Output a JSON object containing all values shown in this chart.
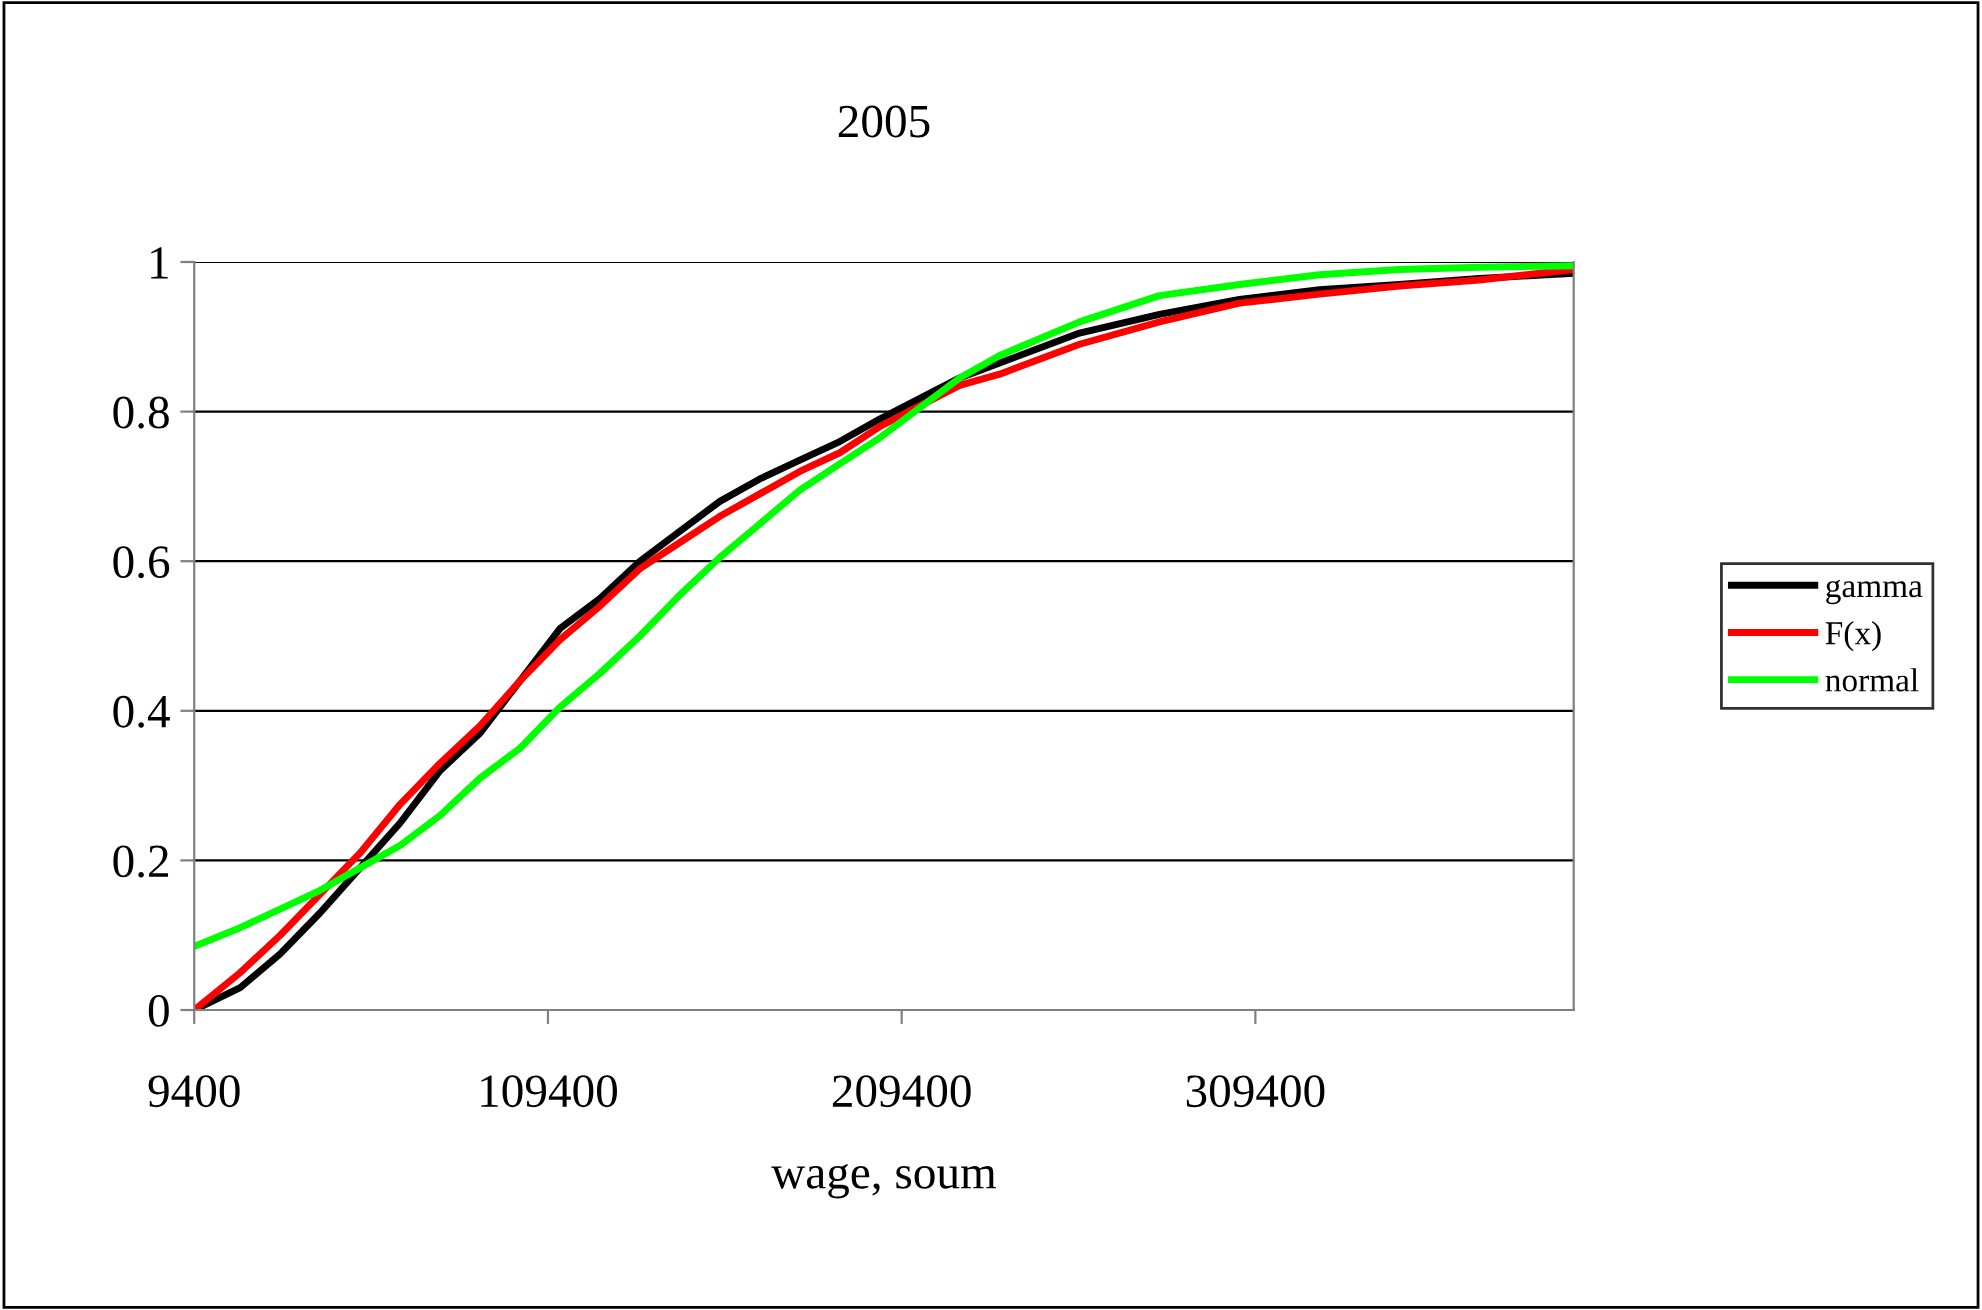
{
  "chart_data": {
    "type": "line",
    "title": "2005",
    "xlabel": "wage, soum",
    "x": [
      9400,
      22400,
      33700,
      45000,
      56300,
      67600,
      78900,
      90200,
      101500,
      112800,
      124100,
      135400,
      146700,
      158000,
      169300,
      180600,
      191900,
      203200,
      225800,
      237100,
      259700,
      282300,
      304900,
      327500,
      350100,
      372700,
      399400
    ],
    "series": [
      {
        "name": "gamma",
        "color": "#000000",
        "values": [
          0,
          0.03,
          0.075,
          0.13,
          0.19,
          0.25,
          0.32,
          0.37,
          0.44,
          0.51,
          0.55,
          0.6,
          0.64,
          0.68,
          0.71,
          0.735,
          0.76,
          0.79,
          0.845,
          0.865,
          0.905,
          0.93,
          0.95,
          0.963,
          0.97,
          0.978,
          0.985
        ]
      },
      {
        "name": "F(x)",
        "color": "#ff0000",
        "values": [
          0,
          0.05,
          0.1,
          0.155,
          0.21,
          0.275,
          0.33,
          0.38,
          0.44,
          0.495,
          0.54,
          0.59,
          0.625,
          0.66,
          0.69,
          0.72,
          0.745,
          0.78,
          0.835,
          0.85,
          0.89,
          0.92,
          0.945,
          0.957,
          0.968,
          0.976,
          0.99
        ]
      },
      {
        "name": "normal",
        "color": "#00ff00",
        "values": [
          0.085,
          0.11,
          0.135,
          0.16,
          0.19,
          0.22,
          0.26,
          0.31,
          0.35,
          0.405,
          0.45,
          0.5,
          0.555,
          0.605,
          0.65,
          0.695,
          0.73,
          0.765,
          0.845,
          0.875,
          0.92,
          0.955,
          0.97,
          0.983,
          0.99,
          0.993,
          0.995
        ]
      }
    ],
    "xlim": [
      9400,
      399400
    ],
    "xticks": [
      9400,
      109400,
      209400,
      309400
    ],
    "ylim": [
      0,
      1
    ],
    "yticks": [
      0,
      0.2,
      0.4,
      0.6,
      0.8,
      1
    ],
    "grid": "y",
    "legend": "right",
    "marker": "none",
    "line_style": "solid"
  }
}
